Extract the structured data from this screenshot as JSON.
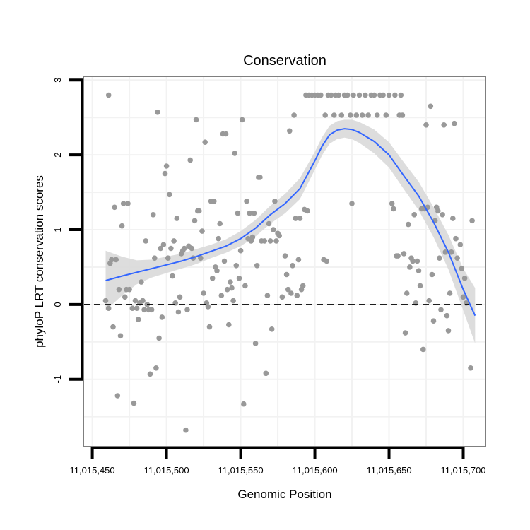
{
  "chart_data": {
    "type": "scatter",
    "title": "Conservation",
    "xlabel": "Genomic Position",
    "ylabel": "phyloP LRT conservation scores",
    "xlim": [
      11015444,
      11015715
    ],
    "ylim": [
      -1.9,
      3.05
    ],
    "x_ticks": [
      {
        "value": 11015450,
        "label": "11,015,450"
      },
      {
        "value": 11015500,
        "label": "11,015,500"
      },
      {
        "value": 11015550,
        "label": "11,015,550"
      },
      {
        "value": 11015600,
        "label": "11,015,600"
      },
      {
        "value": 11015650,
        "label": "11,015,650"
      },
      {
        "value": 11015700,
        "label": "11,015,700"
      }
    ],
    "y_ticks": [
      {
        "value": -1,
        "label": "-1"
      },
      {
        "value": 0,
        "label": "0"
      },
      {
        "value": 1,
        "label": "1"
      },
      {
        "value": 2,
        "label": "2"
      },
      {
        "value": 3,
        "label": "3"
      }
    ],
    "reference_line": {
      "y": 0,
      "style": "dashed"
    },
    "colors": {
      "points": "#999999",
      "smooth": "#3366ff",
      "band": "#d9d9d9",
      "grid": "#f2f2f2",
      "frame": "#7f7f7f"
    },
    "points": [
      [
        11015461,
        2.8
      ],
      [
        11015459,
        0.05
      ],
      [
        11015461,
        -0.05
      ],
      [
        11015462,
        0.55
      ],
      [
        11015463,
        0.6
      ],
      [
        11015464,
        -0.3
      ],
      [
        11015465,
        1.3
      ],
      [
        11015466,
        0.6
      ],
      [
        11015467,
        -1.22
      ],
      [
        11015468,
        0.2
      ],
      [
        11015469,
        -0.42
      ],
      [
        11015470,
        1.05
      ],
      [
        11015471,
        1.35
      ],
      [
        11015472,
        0.1
      ],
      [
        11015473,
        0.2
      ],
      [
        11015474,
        1.35
      ],
      [
        11015475,
        0.2
      ],
      [
        11015477,
        -0.05
      ],
      [
        11015478,
        -1.32
      ],
      [
        11015479,
        0.05
      ],
      [
        11015480,
        -0.05
      ],
      [
        11015481,
        -0.2
      ],
      [
        11015482,
        0.02
      ],
      [
        11015483,
        0.3
      ],
      [
        11015484,
        0.05
      ],
      [
        11015485,
        -0.07
      ],
      [
        11015486,
        0.85
      ],
      [
        11015487,
        0.0
      ],
      [
        11015488,
        -0.07
      ],
      [
        11015489,
        -0.93
      ],
      [
        11015490,
        -0.07
      ],
      [
        11015491,
        1.2
      ],
      [
        11015492,
        0.62
      ],
      [
        11015493,
        -0.85
      ],
      [
        11015494,
        2.57
      ],
      [
        11015495,
        -0.45
      ],
      [
        11015496,
        0.75
      ],
      [
        11015497,
        -0.17
      ],
      [
        11015498,
        0.8
      ],
      [
        11015499,
        1.75
      ],
      [
        11015500,
        1.85
      ],
      [
        11015501,
        0.62
      ],
      [
        11015502,
        1.47
      ],
      [
        11015503,
        0.75
      ],
      [
        11015504,
        0.38
      ],
      [
        11015505,
        0.85
      ],
      [
        11015506,
        0.02
      ],
      [
        11015507,
        1.15
      ],
      [
        11015508,
        -0.1
      ],
      [
        11015509,
        0.1
      ],
      [
        11015510,
        0.68
      ],
      [
        11015511,
        0.72
      ],
      [
        11015512,
        0.75
      ],
      [
        11015513,
        -1.68
      ],
      [
        11015514,
        -0.07
      ],
      [
        11015515,
        0.78
      ],
      [
        11015516,
        1.93
      ],
      [
        11015517,
        0.75
      ],
      [
        11015518,
        0.62
      ],
      [
        11015519,
        1.12
      ],
      [
        11015520,
        2.47
      ],
      [
        11015521,
        1.25
      ],
      [
        11015522,
        1.25
      ],
      [
        11015523,
        0.62
      ],
      [
        11015524,
        0.98
      ],
      [
        11015525,
        0.15
      ],
      [
        11015526,
        2.17
      ],
      [
        11015527,
        0.02
      ],
      [
        11015528,
        -0.03
      ],
      [
        11015529,
        -0.3
      ],
      [
        11015530,
        1.38
      ],
      [
        11015531,
        0.35
      ],
      [
        11015532,
        1.38
      ],
      [
        11015533,
        0.5
      ],
      [
        11015534,
        0.45
      ],
      [
        11015535,
        0.88
      ],
      [
        11015536,
        1.08
      ],
      [
        11015537,
        0.12
      ],
      [
        11015538,
        2.28
      ],
      [
        11015539,
        0.58
      ],
      [
        11015540,
        2.28
      ],
      [
        11015541,
        0.2
      ],
      [
        11015542,
        -0.27
      ],
      [
        11015543,
        0.3
      ],
      [
        11015544,
        0.22
      ],
      [
        11015545,
        0.05
      ],
      [
        11015546,
        2.02
      ],
      [
        11015547,
        0.52
      ],
      [
        11015548,
        1.22
      ],
      [
        11015549,
        0.35
      ],
      [
        11015550,
        0.72
      ],
      [
        11015551,
        2.47
      ],
      [
        11015552,
        -1.33
      ],
      [
        11015553,
        0.25
      ],
      [
        11015554,
        1.38
      ],
      [
        11015555,
        0.88
      ],
      [
        11015556,
        1.22
      ],
      [
        11015557,
        0.85
      ],
      [
        11015558,
        0.9
      ],
      [
        11015559,
        1.22
      ],
      [
        11015560,
        -0.52
      ],
      [
        11015561,
        0.52
      ],
      [
        11015562,
        1.7
      ],
      [
        11015563,
        1.7
      ],
      [
        11015564,
        0.85
      ],
      [
        11015566,
        0.85
      ],
      [
        11015567,
        -0.92
      ],
      [
        11015568,
        0.12
      ],
      [
        11015569,
        1.08
      ],
      [
        11015570,
        0.85
      ],
      [
        11015571,
        -0.33
      ],
      [
        11015572,
        1.0
      ],
      [
        11015573,
        1.38
      ],
      [
        11015574,
        0.85
      ],
      [
        11015575,
        0.95
      ],
      [
        11015576,
        0.92
      ],
      [
        11015578,
        0.1
      ],
      [
        11015580,
        0.65
      ],
      [
        11015581,
        0.4
      ],
      [
        11015582,
        0.2
      ],
      [
        11015583,
        2.32
      ],
      [
        11015584,
        0.15
      ],
      [
        11015585,
        0.52
      ],
      [
        11015586,
        2.53
      ],
      [
        11015587,
        1.15
      ],
      [
        11015588,
        0.12
      ],
      [
        11015589,
        0.6
      ],
      [
        11015590,
        1.15
      ],
      [
        11015591,
        0.2
      ],
      [
        11015592,
        0.25
      ],
      [
        11015593,
        1.27
      ],
      [
        11015594,
        2.8
      ],
      [
        11015595,
        1.25
      ],
      [
        11015596,
        2.8
      ],
      [
        11015598,
        2.8
      ],
      [
        11015600,
        2.8
      ],
      [
        11015602,
        2.8
      ],
      [
        11015604,
        2.8
      ],
      [
        11015606,
        0.6
      ],
      [
        11015607,
        2.53
      ],
      [
        11015608,
        0.58
      ],
      [
        11015609,
        2.8
      ],
      [
        11015611,
        2.8
      ],
      [
        11015613,
        2.53
      ],
      [
        11015614,
        2.8
      ],
      [
        11015616,
        2.8
      ],
      [
        11015618,
        2.53
      ],
      [
        11015620,
        2.8
      ],
      [
        11015622,
        2.8
      ],
      [
        11015624,
        2.53
      ],
      [
        11015625,
        1.35
      ],
      [
        11015626,
        2.8
      ],
      [
        11015628,
        2.53
      ],
      [
        11015630,
        2.8
      ],
      [
        11015632,
        2.53
      ],
      [
        11015634,
        2.8
      ],
      [
        11015636,
        2.53
      ],
      [
        11015638,
        2.8
      ],
      [
        11015640,
        2.8
      ],
      [
        11015642,
        2.53
      ],
      [
        11015644,
        2.8
      ],
      [
        11015646,
        2.8
      ],
      [
        11015648,
        2.53
      ],
      [
        11015650,
        2.8
      ],
      [
        11015652,
        1.35
      ],
      [
        11015653,
        1.28
      ],
      [
        11015654,
        2.8
      ],
      [
        11015655,
        0.65
      ],
      [
        11015656,
        0.65
      ],
      [
        11015657,
        2.53
      ],
      [
        11015658,
        2.8
      ],
      [
        11015659,
        2.53
      ],
      [
        11015660,
        0.68
      ],
      [
        11015661,
        -0.38
      ],
      [
        11015662,
        0.15
      ],
      [
        11015663,
        1.07
      ],
      [
        11015664,
        0.5
      ],
      [
        11015665,
        0.62
      ],
      [
        11015666,
        0.58
      ],
      [
        11015667,
        1.2
      ],
      [
        11015668,
        0.02
      ],
      [
        11015669,
        0.58
      ],
      [
        11015670,
        0.45
      ],
      [
        11015671,
        0.25
      ],
      [
        11015672,
        1.28
      ],
      [
        11015673,
        -0.6
      ],
      [
        11015674,
        1.28
      ],
      [
        11015675,
        2.4
      ],
      [
        11015676,
        1.3
      ],
      [
        11015677,
        0.05
      ],
      [
        11015678,
        2.65
      ],
      [
        11015679,
        0.4
      ],
      [
        11015680,
        -0.22
      ],
      [
        11015681,
        1.12
      ],
      [
        11015682,
        1.3
      ],
      [
        11015683,
        1.25
      ],
      [
        11015684,
        0.62
      ],
      [
        11015685,
        -0.07
      ],
      [
        11015686,
        1.2
      ],
      [
        11015687,
        2.4
      ],
      [
        11015688,
        0.7
      ],
      [
        11015689,
        -0.15
      ],
      [
        11015690,
        -0.35
      ],
      [
        11015691,
        0.15
      ],
      [
        11015692,
        0.7
      ],
      [
        11015693,
        1.15
      ],
      [
        11015694,
        2.42
      ],
      [
        11015695,
        0.88
      ],
      [
        11015696,
        0.62
      ],
      [
        11015698,
        0.8
      ],
      [
        11015699,
        0.48
      ],
      [
        11015700,
        0.1
      ],
      [
        11015701,
        0.35
      ],
      [
        11015702,
        0.02
      ],
      [
        11015705,
        -0.85
      ],
      [
        11015706,
        1.12
      ]
    ],
    "smooth": {
      "x": [
        11015459,
        11015470,
        11015480,
        11015490,
        11015500,
        11015510,
        11015520,
        11015530,
        11015540,
        11015550,
        11015560,
        11015570,
        11015580,
        11015590,
        11015600,
        11015605,
        11015610,
        11015615,
        11015620,
        11015625,
        11015630,
        11015640,
        11015650,
        11015660,
        11015670,
        11015680,
        11015690,
        11015700,
        11015708
      ],
      "y": [
        0.32,
        0.38,
        0.43,
        0.48,
        0.53,
        0.58,
        0.64,
        0.71,
        0.78,
        0.88,
        1.02,
        1.2,
        1.35,
        1.55,
        1.92,
        2.12,
        2.27,
        2.33,
        2.35,
        2.34,
        2.3,
        2.18,
        2.0,
        1.72,
        1.45,
        1.1,
        0.7,
        0.2,
        -0.15
      ],
      "upper": [
        0.72,
        0.64,
        0.59,
        0.6,
        0.64,
        0.68,
        0.74,
        0.8,
        0.87,
        0.98,
        1.13,
        1.32,
        1.48,
        1.69,
        2.04,
        2.24,
        2.39,
        2.45,
        2.47,
        2.47,
        2.44,
        2.34,
        2.17,
        1.9,
        1.64,
        1.3,
        0.93,
        0.48,
        0.22
      ],
      "lower": [
        -0.08,
        0.12,
        0.27,
        0.36,
        0.42,
        0.48,
        0.54,
        0.62,
        0.69,
        0.78,
        0.91,
        1.08,
        1.22,
        1.41,
        1.8,
        2.0,
        2.15,
        2.21,
        2.23,
        2.21,
        2.16,
        2.02,
        1.83,
        1.54,
        1.26,
        0.9,
        0.47,
        -0.08,
        -0.52
      ]
    }
  }
}
